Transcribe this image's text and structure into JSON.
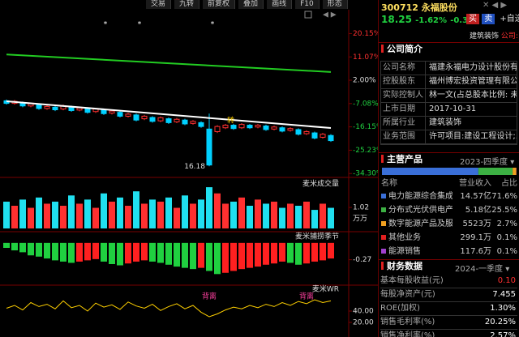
{
  "toolbar": [
    "交易",
    "九转",
    "前复权",
    "叠加",
    "画线",
    "F10",
    "形态"
  ],
  "quote": {
    "code_name": "300712 永福股份",
    "price": "18.25",
    "change_pct": "-1.62%",
    "change": "-0.30",
    "buy": "买",
    "sell": "卖",
    "watch": "+自选",
    "industry": "建筑装饰",
    "company": "公司: 0.05"
  },
  "chart_data": [
    {
      "type": "candlestick",
      "up_color": "#ff3030",
      "down_color": "#00d0ff",
      "open": [
        -6.0,
        -7.0,
        -6.8,
        -8.0,
        -7.5,
        -9.0,
        -8.5,
        -9.2,
        -8.4,
        -9.6,
        -9.0,
        -10.2,
        -9.5,
        -10.8,
        -10.5,
        -12.0,
        -11.5,
        -13.0,
        -12.5,
        -13.8,
        -13.0,
        -14.2,
        -13.5,
        -14.8,
        -14.5,
        -17.0,
        -18.0,
        -16.5,
        -15.5,
        -16.5,
        -15.5,
        -16.2,
        -15.8,
        -17.0,
        -16.5,
        -17.5,
        -17.2,
        -18.8,
        -18.5,
        -20.2,
        -19.5
      ],
      "high": [
        -5.5,
        -5.7,
        -6.3,
        -6.7,
        -7.0,
        -7.7,
        -8.0,
        -7.5,
        -7.9,
        -8.3,
        -8.5,
        -8.7,
        -9.0,
        -9.5,
        -10.0,
        -10.7,
        -11.0,
        -11.5,
        -12.0,
        -12.1,
        -12.5,
        -12.7,
        -13.0,
        -13.5,
        -14.0,
        -11.0,
        -15.5,
        -15.0,
        -15.0,
        -14.7,
        -15.0,
        -15.0,
        -15.3,
        -15.7,
        -16.0,
        -16.3,
        -16.7,
        -17.5,
        -18.0,
        -18.5,
        -19.0
      ],
      "low": [
        -7.5,
        -7.5,
        -8.5,
        -8.5,
        -9.5,
        -9.5,
        -10.0,
        -9.7,
        -10.3,
        -10.1,
        -11.0,
        -10.7,
        -11.5,
        -11.3,
        -12.5,
        -12.5,
        -14.0,
        -13.5,
        -14.5,
        -14.3,
        -15.0,
        -14.7,
        -15.5,
        -15.3,
        -16.5,
        -31.5,
        -18.5,
        -17.0,
        -17.3,
        -17.0,
        -17.0,
        -16.7,
        -17.7,
        -17.5,
        -18.3,
        -18.0,
        -19.5,
        -19.3,
        -21.0,
        -20.7,
        -22.0
      ],
      "close": [
        -7.0,
        -6.2,
        -8.0,
        -7.2,
        -9.0,
        -8.2,
        -9.5,
        -8.0,
        -9.8,
        -8.8,
        -10.5,
        -9.2,
        -11.0,
        -10.0,
        -12.0,
        -11.2,
        -13.5,
        -12.0,
        -14.0,
        -12.6,
        -14.5,
        -13.2,
        -15.0,
        -14.0,
        -16.0,
        -31.0,
        -16.0,
        -15.5,
        -16.8,
        -15.2,
        -16.5,
        -15.5,
        -17.2,
        -16.2,
        -17.8,
        -16.8,
        -19.0,
        -18.0,
        -20.5,
        -19.0,
        -21.5
      ],
      "lines": [
        {
          "color": "#22cc22",
          "x": [
            0,
            40
          ],
          "values": [
            12.0,
            5.2
          ]
        },
        {
          "color": "#ffffff",
          "x": [
            0,
            40
          ],
          "values": [
            -6.2,
            -16.6
          ]
        }
      ],
      "annotations": [
        {
          "text": "16.18",
          "index": 25
        },
        {
          "text": "转",
          "index": 27
        }
      ],
      "ylim": [
        -35.5,
        28.8
      ],
      "yticks": [
        {
          "value": 20.15,
          "label": "20.15%"
        },
        {
          "value": 11.07,
          "label": "11.07%"
        },
        {
          "value": 2.0,
          "label": "2.00%"
        },
        {
          "value": -7.08,
          "label": "-7.08%"
        },
        {
          "value": -16.15,
          "label": "-16.15%"
        },
        {
          "value": -25.23,
          "label": "-25.23%"
        },
        {
          "value": -34.3,
          "label": "-34.30%"
        }
      ]
    },
    {
      "type": "bar",
      "title": "麦米成交量",
      "unit": "万万",
      "values": [
        1.3,
        1.1,
        1.4,
        1.0,
        1.5,
        1.2,
        1.3,
        1.1,
        1.6,
        1.2,
        1.4,
        1.0,
        1.7,
        1.3,
        1.5,
        1.1,
        1.8,
        1.2,
        1.4,
        1.3,
        1.5,
        1.0,
        1.6,
        1.2,
        1.4,
        2.0,
        1.7,
        1.2,
        1.3,
        1.5,
        1.1,
        1.4,
        1.2,
        1.3,
        1.0,
        1.2,
        1.1,
        1.3,
        0.9,
        1.2,
        1.0
      ],
      "up_color": "#ff3030",
      "down_color": "#20e0f0",
      "ylim": [
        0,
        2.2
      ],
      "yticks": [
        1.02
      ]
    },
    {
      "type": "bar",
      "title": "麦米捕捞季节",
      "values": [
        -0.08,
        -0.12,
        -0.15,
        -0.2,
        -0.22,
        -0.25,
        -0.28,
        -0.3,
        -0.32,
        -0.3,
        -0.28,
        -0.26,
        -0.3,
        -0.34,
        -0.36,
        -0.33,
        -0.3,
        -0.28,
        -0.3,
        -0.32,
        -0.35,
        -0.38,
        -0.4,
        -0.42,
        -0.4,
        -0.45,
        -0.5,
        -0.48,
        -0.45,
        -0.42,
        -0.4,
        -0.38,
        -0.35,
        -0.33,
        -0.3,
        -0.32,
        -0.35,
        -0.33,
        -0.3,
        -0.28,
        -0.25
      ],
      "up_color": "#ff2020",
      "down_color": "#20d040",
      "ylim": [
        -0.6,
        0.05
      ],
      "yticks": [
        -0.27
      ]
    },
    {
      "type": "line",
      "title": "麦米WR",
      "color": "#ffd000",
      "values": [
        45,
        50,
        42,
        55,
        48,
        52,
        44,
        58,
        46,
        50,
        40,
        54,
        47,
        51,
        43,
        56,
        49,
        45,
        52,
        41,
        48,
        53,
        44,
        50,
        38,
        30,
        35,
        42,
        47,
        44,
        50,
        46,
        52,
        48,
        55,
        50,
        57,
        53,
        60,
        55,
        58
      ],
      "annotations": [
        {
          "text": "背离",
          "index": 25
        },
        {
          "text": "背离",
          "index": 37
        }
      ],
      "ylim": [
        0,
        80
      ],
      "yticks": [
        {
          "value": 40,
          "label": "40.00"
        },
        {
          "value": 20,
          "label": "20.00"
        }
      ]
    }
  ],
  "profile": {
    "title": "公司简介",
    "rows": [
      [
        "公司名称",
        "福建永福电力设计股份有限公司"
      ],
      [
        "控股股东",
        "福州博宏投资管理有限公司"
      ],
      [
        "实际控制人",
        "林一文(占总股本比例: 未..."
      ],
      [
        "上市日期",
        "2017-10-31"
      ],
      [
        "所属行业",
        "建筑装饰"
      ],
      [
        "业务范围",
        "许可项目:建设工程设计;..."
      ]
    ]
  },
  "products": {
    "title": "主营产品",
    "period": "2023-四季度",
    "columns": [
      "名称",
      "营业收入",
      "占比"
    ],
    "rows": [
      {
        "name": "电力能源综合集成...",
        "revenue": "14.57亿",
        "share": 71.6,
        "share_label": "71.6%",
        "color": "#3a6fd8"
      },
      {
        "name": "分布式光伏供电产...",
        "revenue": "5.18亿",
        "share": 25.5,
        "share_label": "25.5%",
        "color": "#3cb043"
      },
      {
        "name": "数字能源产品及服务",
        "revenue": "5523万",
        "share": 2.7,
        "share_label": "2.7%",
        "color": "#f0a020"
      },
      {
        "name": "其他业务",
        "revenue": "299.1万",
        "share": 0.1,
        "share_label": "0.1%",
        "color": "#e02020"
      },
      {
        "name": "能源销售",
        "revenue": "117.6万",
        "share": 0.1,
        "share_label": "0.1%",
        "color": "#a040d0"
      }
    ]
  },
  "finance": {
    "title": "财务数据",
    "period": "2024-一季度",
    "rows": [
      [
        "基本每股收益(元)",
        "0.10"
      ],
      [
        "每股净资产(元)",
        "7.455"
      ],
      [
        "ROE(加权)",
        "1.30%"
      ],
      [
        "销售毛利率(%)",
        "20.25%"
      ],
      [
        "销售净利率(%)",
        "2.57%"
      ]
    ]
  }
}
